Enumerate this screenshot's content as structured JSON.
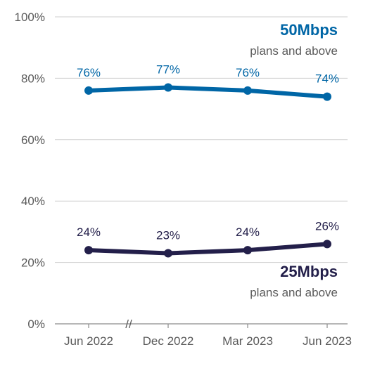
{
  "chart_data": {
    "type": "line",
    "categories": [
      "Jun 2022",
      "Dec 2022",
      "Mar 2023",
      "Jun 2023"
    ],
    "ylim": [
      0,
      100
    ],
    "yticks": [
      "0%",
      "20%",
      "40%",
      "60%",
      "80%",
      "100%"
    ],
    "ytick_values": [
      0,
      20,
      40,
      60,
      80,
      100
    ],
    "grid": true,
    "axis_break": "//",
    "series": [
      {
        "name": "50Mbps",
        "sublabel": "plans and above",
        "values": [
          76,
          77,
          76,
          74
        ],
        "labels": [
          "76%",
          "77%",
          "76%",
          "74%"
        ],
        "color": "#0066a6"
      },
      {
        "name": "25Mbps",
        "sublabel": "plans and above",
        "values": [
          24,
          23,
          24,
          26
        ],
        "labels": [
          "24%",
          "23%",
          "24%",
          "26%"
        ],
        "color": "#231f4a"
      }
    ]
  }
}
